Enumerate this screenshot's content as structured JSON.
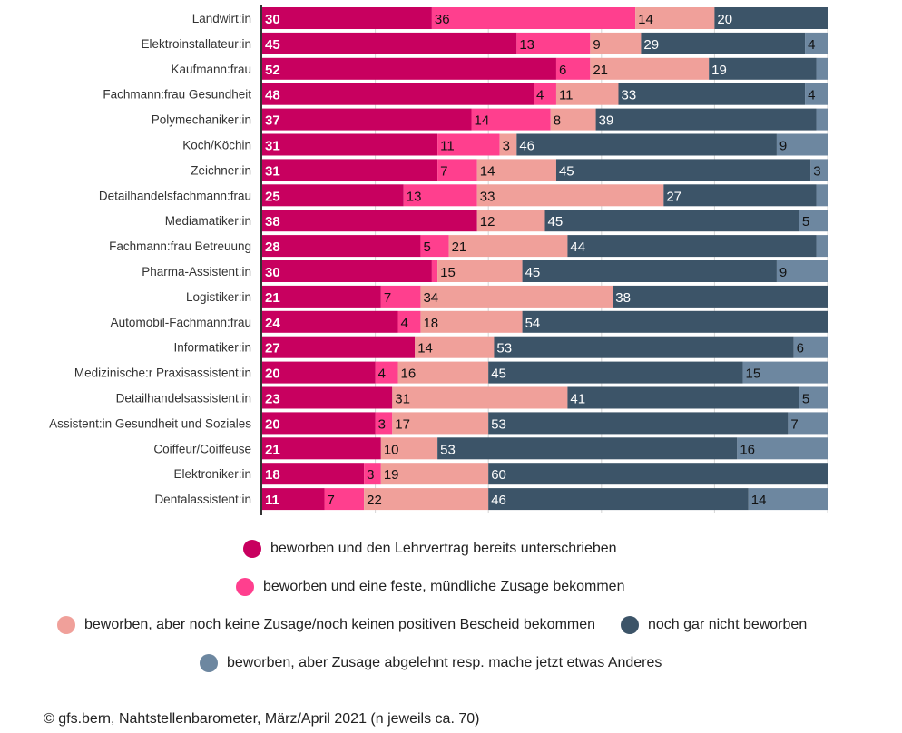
{
  "chart_data": {
    "type": "bar",
    "orientation": "horizontal",
    "stacked": true,
    "xlim": [
      0,
      100
    ],
    "grid": true,
    "categories": [
      "Landwirt:in",
      "Elektroinstallateur:in",
      "Kaufmann:frau",
      "Fachmann:frau Gesundheit",
      "Polymechaniker:in",
      "Koch/Köchin",
      "Zeichner:in",
      "Detailhandelsfachmann:frau",
      "Mediamatiker:in",
      "Fachmann:frau Betreuung",
      "Pharma-Assistent:in",
      "Logistiker:in",
      "Automobil-Fachmann:frau",
      "Informatiker:in",
      "Medizinische:r Praxisassistent:in",
      "Detailhandelsassistent:in",
      "Assistent:in Gesundheit und Soziales",
      "Coiffeur/Coiffeuse",
      "Elektroniker:in",
      "Dentalassistent:in"
    ],
    "series": [
      {
        "name": "beworben und den Lehrvertrag bereits unterschrieben",
        "color": "#c8005f",
        "values": [
          30,
          45,
          52,
          48,
          37,
          31,
          31,
          25,
          38,
          28,
          30,
          21,
          24,
          27,
          20,
          23,
          20,
          21,
          18,
          11
        ]
      },
      {
        "name": "beworben und eine feste, mündliche Zusage bekommen",
        "color": "#ff3f8e",
        "values": [
          36,
          13,
          6,
          4,
          14,
          11,
          7,
          13,
          0,
          5,
          1,
          7,
          4,
          0,
          4,
          0,
          3,
          0,
          3,
          7
        ]
      },
      {
        "name": "beworben, aber noch keine Zusage/noch keinen positiven Bescheid bekommen",
        "color": "#f0a09a",
        "values": [
          14,
          9,
          21,
          11,
          8,
          3,
          14,
          33,
          12,
          21,
          15,
          34,
          18,
          14,
          16,
          31,
          17,
          10,
          19,
          22
        ]
      },
      {
        "name": "noch gar nicht beworben",
        "color": "#3c5468",
        "values": [
          20,
          29,
          19,
          33,
          39,
          46,
          45,
          27,
          45,
          44,
          45,
          38,
          54,
          53,
          45,
          41,
          53,
          53,
          60,
          46
        ]
      },
      {
        "name": "beworben, aber Zusage abgelehnt resp. mache jetzt etwas Anderes",
        "color": "#6d87a0",
        "values": [
          0,
          4,
          2,
          4,
          2,
          9,
          3,
          2,
          5,
          2,
          9,
          0,
          0,
          6,
          15,
          5,
          7,
          16,
          0,
          14
        ]
      }
    ],
    "labels_shown": [
      [
        "30",
        "36",
        "14",
        "20",
        ""
      ],
      [
        "45",
        "13",
        "9",
        "29",
        "4"
      ],
      [
        "52",
        "6",
        "21",
        "19",
        ""
      ],
      [
        "48",
        "4",
        "11",
        "33",
        "4"
      ],
      [
        "37",
        "14",
        "8",
        "39",
        ""
      ],
      [
        "31",
        "11",
        "3",
        "46",
        "9"
      ],
      [
        "31",
        "7",
        "14",
        "45",
        "3"
      ],
      [
        "25",
        "13",
        "33",
        "27",
        ""
      ],
      [
        "38",
        "",
        "12",
        "45",
        "5"
      ],
      [
        "28",
        "5",
        "21",
        "44",
        ""
      ],
      [
        "30",
        "",
        "15",
        "45",
        "9"
      ],
      [
        "21",
        "7",
        "34",
        "38",
        ""
      ],
      [
        "24",
        "4",
        "18",
        "54",
        ""
      ],
      [
        "27",
        "",
        "14",
        "53",
        "6"
      ],
      [
        "20",
        "4",
        "16",
        "45",
        "15"
      ],
      [
        "23",
        "",
        "31",
        "41",
        "5"
      ],
      [
        "20",
        "3",
        "17",
        "53",
        "7"
      ],
      [
        "21",
        "",
        "10",
        "53",
        "16"
      ],
      [
        "18",
        "3",
        "19",
        "60",
        ""
      ],
      [
        "11",
        "7",
        "22",
        "46",
        "14"
      ]
    ]
  },
  "legend": {
    "items": [
      {
        "label": "beworben und den Lehrvertrag bereits unterschrieben",
        "color": "#c8005f"
      },
      {
        "label": "beworben und eine feste, mündliche Zusage bekommen",
        "color": "#ff3f8e"
      },
      {
        "label": "beworben, aber noch keine Zusage/noch keinen positiven Bescheid bekommen",
        "color": "#f0a09a"
      },
      {
        "label": "noch gar nicht beworben",
        "color": "#3c5468"
      },
      {
        "label": "beworben, aber Zusage abgelehnt resp. mache jetzt etwas Anderes",
        "color": "#6d87a0"
      }
    ]
  },
  "source": "© gfs.bern, Nahtstellenbarometer, März/April 2021 (n jeweils ca. 70)"
}
